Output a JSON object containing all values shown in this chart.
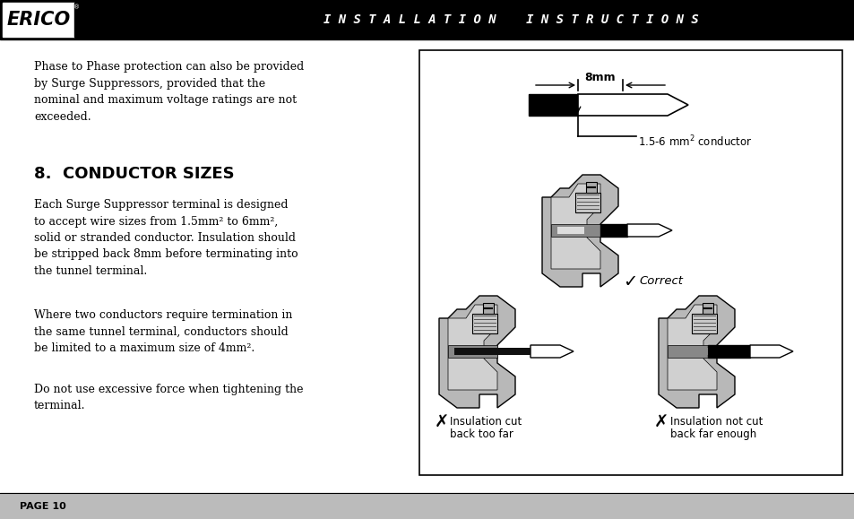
{
  "bg_color": "#ffffff",
  "header_bg": "#000000",
  "header_text": "I N S T A L L A T I O N    I N S T R U C T I O N S",
  "header_text_color": "#ffffff",
  "header_font_size": 10,
  "erico_text": "ERICO",
  "erico_font_size": 15,
  "section_title": "8.  CONDUCTOR SIZES",
  "section_title_size": 13,
  "para1": "Phase to Phase protection can also be provided\nby Surge Suppressors, provided that the\nnominal and maximum voltage ratings are not\nexceeded.",
  "para2": "Each Surge Suppressor terminal is designed\nto accept wire sizes from 1.5mm² to 6mm²,\nsolid or stranded conductor. Insulation should\nbe stripped back 8mm before terminating into\nthe tunnel terminal.",
  "para3": "Where two conductors require termination in\nthe same tunnel terminal, conductors should\nbe limited to a maximum size of 4mm².",
  "para4": "Do not use excessive force when tightening the\nterminal.",
  "footer_text": "PAGE 10",
  "footer_bg": "#bbbbbb",
  "text_color": "#000000",
  "body_font_size": 9,
  "page_width": 9.54,
  "page_height": 5.79
}
